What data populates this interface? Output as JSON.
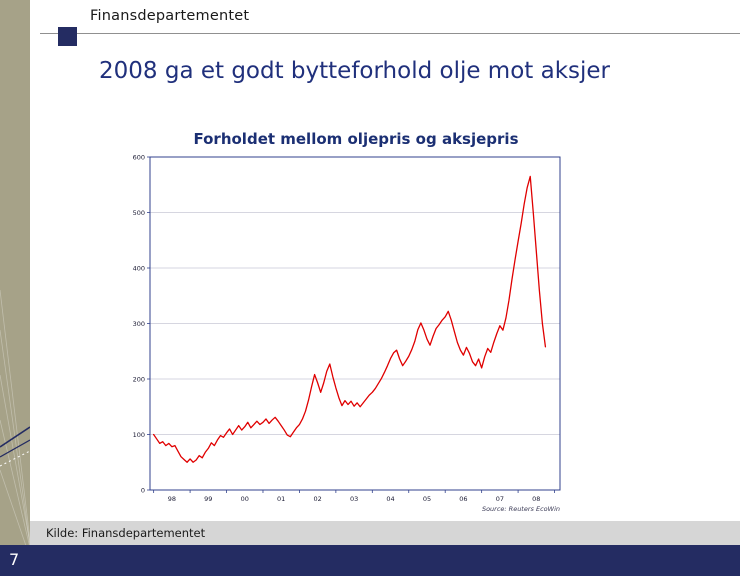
{
  "header": {
    "title": "Finansdepartementet"
  },
  "slide": {
    "title": "2008 ga et godt bytteforhold olje mot aksjer"
  },
  "footer": {
    "kilde": "Kilde: Finansdepartementet",
    "page_number": "7"
  },
  "colors": {
    "band_olive": "#a6a288",
    "navy": "#242c62",
    "title_blue": "#20307c",
    "kilde_strip_gray": "#d6d6d6",
    "line_red": "#e00000"
  },
  "chart_data": {
    "type": "line",
    "title": "Forholdet mellom oljepris og aksjepris",
    "source": "Source: Reuters EcoWin",
    "series_name": "Forholdet mellom oljepris og aksjepris (indeks)",
    "xlabel": "",
    "ylabel": "",
    "ylim": [
      0,
      600
    ],
    "xlim": [
      1997.9,
      2009.15
    ],
    "yticks": [
      0,
      100,
      200,
      300,
      400,
      500,
      600
    ],
    "xticks": [
      "98",
      "99",
      "00",
      "01",
      "02",
      "03",
      "04",
      "05",
      "06",
      "07",
      "08"
    ],
    "xtick_positions": [
      1998.5,
      1999.5,
      2000.5,
      2001.5,
      2002.5,
      2003.5,
      2004.5,
      2005.5,
      2006.5,
      2007.5,
      2008.5
    ],
    "grid": true,
    "legend_position": "none",
    "line_color": "#e00000",
    "grid_color": "#c9c9d6",
    "border_color": "#31418c",
    "x_start": 1998.0,
    "x_step": 0.0833333,
    "values": [
      100,
      92,
      84,
      87,
      80,
      84,
      78,
      80,
      70,
      60,
      55,
      50,
      56,
      50,
      54,
      62,
      58,
      68,
      75,
      85,
      80,
      90,
      98,
      95,
      103,
      110,
      100,
      108,
      116,
      108,
      114,
      122,
      112,
      118,
      124,
      118,
      122,
      128,
      120,
      126,
      131,
      124,
      116,
      108,
      99,
      96,
      104,
      112,
      118,
      128,
      142,
      162,
      186,
      208,
      193,
      176,
      193,
      214,
      227,
      204,
      184,
      166,
      152,
      161,
      154,
      160,
      151,
      157,
      150,
      157,
      164,
      171,
      176,
      183,
      192,
      201,
      212,
      224,
      237,
      247,
      252,
      236,
      224,
      232,
      241,
      253,
      268,
      289,
      301,
      288,
      272,
      261,
      277,
      291,
      298,
      306,
      312,
      322,
      306,
      286,
      266,
      252,
      243,
      257,
      246,
      231,
      224,
      236,
      220,
      240,
      255,
      248,
      266,
      282,
      296,
      288,
      310,
      342,
      380,
      415,
      448,
      480,
      515,
      545,
      565,
      500,
      430,
      360,
      300,
      258
    ]
  }
}
